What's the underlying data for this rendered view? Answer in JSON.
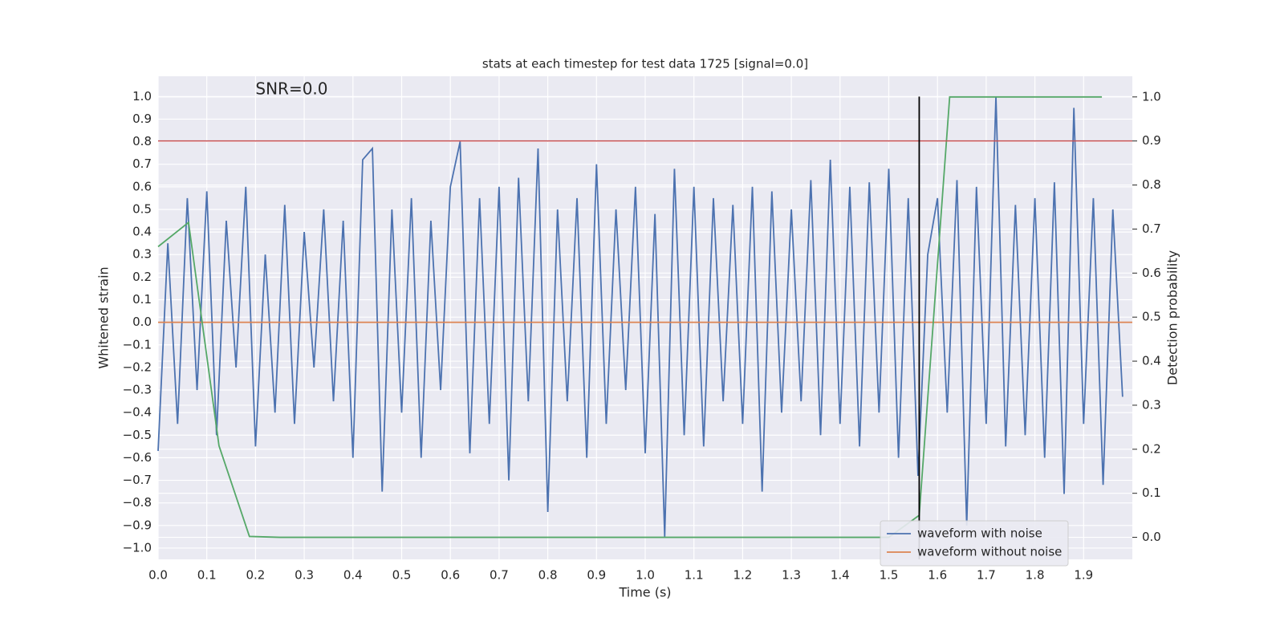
{
  "chart_data": {
    "type": "line",
    "title": "stats at each timestep for test data 1725 [signal=0.0]",
    "annotation": {
      "text": "SNR=0.0",
      "x": 0.2,
      "y": 1.03
    },
    "xlabel": "Time (s)",
    "ylabel": "Whitened strain",
    "y2label": "Detection probability",
    "xlim": [
      0,
      2.0
    ],
    "ylim": [
      -1.05,
      1.09
    ],
    "y2lim": [
      -0.05,
      1.047
    ],
    "xticks": [
      {
        "value": 0,
        "label": "0.0"
      },
      {
        "value": 0.1,
        "label": "0.1"
      },
      {
        "value": 0.2,
        "label": "0.2"
      },
      {
        "value": 0.3,
        "label": "0.3"
      },
      {
        "value": 0.4,
        "label": "0.4"
      },
      {
        "value": 0.5,
        "label": "0.5"
      },
      {
        "value": 0.6,
        "label": "0.6"
      },
      {
        "value": 0.7,
        "label": "0.7"
      },
      {
        "value": 0.8,
        "label": "0.8"
      },
      {
        "value": 0.9,
        "label": "0.9"
      },
      {
        "value": 1.0,
        "label": "1.0"
      },
      {
        "value": 1.1,
        "label": "1.1"
      },
      {
        "value": 1.2,
        "label": "1.2"
      },
      {
        "value": 1.3,
        "label": "1.3"
      },
      {
        "value": 1.4,
        "label": "1.4"
      },
      {
        "value": 1.5,
        "label": "1.5"
      },
      {
        "value": 1.6,
        "label": "1.6"
      },
      {
        "value": 1.7,
        "label": "1.7"
      },
      {
        "value": 1.8,
        "label": "1.8"
      },
      {
        "value": 1.9,
        "label": "1.9"
      }
    ],
    "yticks": [
      {
        "value": -1.0,
        "label": "−1.0"
      },
      {
        "value": -0.9,
        "label": "−0.9"
      },
      {
        "value": -0.8,
        "label": "−0.8"
      },
      {
        "value": -0.7,
        "label": "−0.7"
      },
      {
        "value": -0.6,
        "label": "−0.6"
      },
      {
        "value": -0.5,
        "label": "−0.5"
      },
      {
        "value": -0.4,
        "label": "−0.4"
      },
      {
        "value": -0.3,
        "label": "−0.3"
      },
      {
        "value": -0.2,
        "label": "−0.2"
      },
      {
        "value": -0.1,
        "label": "−0.1"
      },
      {
        "value": 0,
        "label": "0.0"
      },
      {
        "value": 0.1,
        "label": "0.1"
      },
      {
        "value": 0.2,
        "label": "0.2"
      },
      {
        "value": 0.3,
        "label": "0.3"
      },
      {
        "value": 0.4,
        "label": "0.4"
      },
      {
        "value": 0.5,
        "label": "0.5"
      },
      {
        "value": 0.6,
        "label": "0.6"
      },
      {
        "value": 0.7,
        "label": "0.7"
      },
      {
        "value": 0.8,
        "label": "0.8"
      },
      {
        "value": 0.9,
        "label": "0.9"
      },
      {
        "value": 1.0,
        "label": "1.0"
      }
    ],
    "y2ticks": [
      {
        "value": 0,
        "label": "0.0"
      },
      {
        "value": 0.1,
        "label": "0.1"
      },
      {
        "value": 0.2,
        "label": "0.2"
      },
      {
        "value": 0.3,
        "label": "0.3"
      },
      {
        "value": 0.4,
        "label": "0.4"
      },
      {
        "value": 0.5,
        "label": "0.5"
      },
      {
        "value": 0.6,
        "label": "0.6"
      },
      {
        "value": 0.7,
        "label": "0.7"
      },
      {
        "value": 0.8,
        "label": "0.8"
      },
      {
        "value": 0.9,
        "label": "0.9"
      },
      {
        "value": 1.0,
        "label": "1.0"
      }
    ],
    "grid": true,
    "legend": "lower right",
    "series": [
      {
        "name": "waveform with noise",
        "color": "#4c72b0",
        "x": [
          0,
          0.02,
          0.04,
          0.06,
          0.08,
          0.1,
          0.12,
          0.14,
          0.16,
          0.18,
          0.2,
          0.22,
          0.24,
          0.26,
          0.28,
          0.3,
          0.32,
          0.34,
          0.36,
          0.38,
          0.4,
          0.42,
          0.44,
          0.46,
          0.48,
          0.5,
          0.52,
          0.54,
          0.56,
          0.58,
          0.6,
          0.62,
          0.64,
          0.66,
          0.68,
          0.7,
          0.72,
          0.74,
          0.76,
          0.78,
          0.8,
          0.82,
          0.84,
          0.86,
          0.88,
          0.9,
          0.92,
          0.94,
          0.96,
          0.98,
          1.0,
          1.02,
          1.04,
          1.06,
          1.08,
          1.1,
          1.12,
          1.14,
          1.16,
          1.18,
          1.2,
          1.22,
          1.24,
          1.26,
          1.28,
          1.3,
          1.32,
          1.34,
          1.36,
          1.38,
          1.4,
          1.42,
          1.44,
          1.46,
          1.48,
          1.5,
          1.52,
          1.54,
          1.56,
          1.58,
          1.6,
          1.62,
          1.64,
          1.66,
          1.68,
          1.7,
          1.72,
          1.74,
          1.76,
          1.78,
          1.8,
          1.82,
          1.84,
          1.86,
          1.88,
          1.9,
          1.92,
          1.94,
          1.96,
          1.98
        ],
        "values": [
          -0.57,
          0.35,
          -0.45,
          0.55,
          -0.3,
          0.58,
          -0.5,
          0.45,
          -0.2,
          0.6,
          -0.55,
          0.3,
          -0.4,
          0.52,
          -0.45,
          0.4,
          -0.2,
          0.5,
          -0.35,
          0.45,
          -0.6,
          0.72,
          0.77,
          -0.75,
          0.5,
          -0.4,
          0.55,
          -0.6,
          0.45,
          -0.3,
          0.6,
          0.8,
          -0.58,
          0.55,
          -0.45,
          0.6,
          -0.7,
          0.64,
          -0.35,
          0.77,
          -0.84,
          0.5,
          -0.35,
          0.55,
          -0.6,
          0.7,
          -0.45,
          0.5,
          -0.3,
          0.6,
          -0.58,
          0.48,
          -0.95,
          0.68,
          -0.5,
          0.6,
          -0.55,
          0.55,
          -0.35,
          0.52,
          -0.45,
          0.6,
          -0.75,
          0.58,
          -0.4,
          0.5,
          -0.35,
          0.63,
          -0.5,
          0.72,
          -0.45,
          0.6,
          -0.55,
          0.62,
          -0.4,
          0.68,
          -0.6,
          0.55,
          -0.68,
          0.3,
          0.55,
          -0.4,
          0.63,
          -0.9,
          0.6,
          -0.45,
          1.0,
          -0.55,
          0.52,
          -0.5,
          0.55,
          -0.6,
          0.62,
          -0.76,
          0.95,
          -0.45,
          0.55,
          -0.72,
          0.5,
          -0.33
        ]
      },
      {
        "name": "waveform without noise",
        "color": "#dd8452",
        "x": [
          0,
          2.0
        ],
        "values": [
          0,
          0
        ]
      },
      {
        "color": "#55a868",
        "axis": "y2",
        "x": [
          0,
          0.0625,
          0.125,
          0.1875,
          0.25,
          0.3125,
          0.375,
          0.4375,
          0.5,
          0.5625,
          0.625,
          0.6875,
          0.75,
          0.8125,
          0.875,
          0.9375,
          1.0,
          1.0625,
          1.125,
          1.1875,
          1.25,
          1.3125,
          1.375,
          1.4375,
          1.5,
          1.5625,
          1.625,
          1.6875,
          1.75,
          1.8125,
          1.875,
          1.9375
        ],
        "values": [
          0.66,
          0.715,
          0.208,
          0.002,
          0,
          0,
          0,
          0,
          0,
          0,
          0,
          0,
          0,
          0,
          0,
          0,
          0,
          0,
          0,
          0,
          0,
          0,
          0,
          0,
          0,
          0.05,
          1.0,
          1.0,
          1.0,
          1.0,
          1.0,
          1.0
        ]
      }
    ],
    "threshold": {
      "y2": 0.9,
      "color": "#c44e52"
    },
    "vline": {
      "x": 1.5625,
      "ymax": 1.0,
      "color": "#000000"
    }
  }
}
